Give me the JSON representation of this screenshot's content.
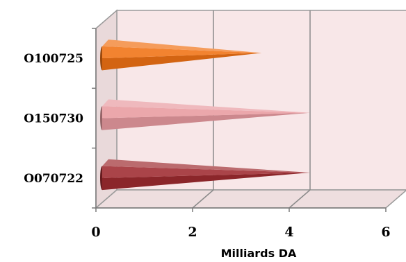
{
  "chart_data": {
    "type": "bar",
    "orientation": "horizontal",
    "style": "3d-cone",
    "categories": [
      "O100725",
      "O150730",
      "O070722"
    ],
    "values": [
      3.3,
      4.3,
      4.3
    ],
    "colors": [
      "#F07214",
      "#E89BA0",
      "#9E2B30"
    ],
    "xlabel": "Milliards DA",
    "xlim": [
      0,
      6
    ],
    "xticks": [
      0,
      2,
      4,
      6
    ],
    "grid": true,
    "legend": "none",
    "wall_color": "#F8E7E8"
  }
}
